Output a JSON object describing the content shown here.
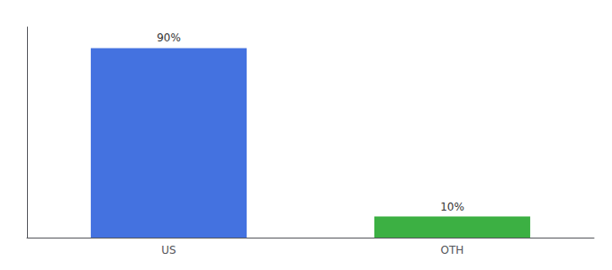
{
  "chart_data": {
    "type": "bar",
    "categories": [
      "US",
      "OTH"
    ],
    "values": [
      90,
      10
    ],
    "value_labels": [
      "90%",
      "10%"
    ],
    "colors": [
      "#4472e0",
      "#3cb043"
    ],
    "ylim": [
      0,
      100
    ],
    "yticks": [],
    "tick_labels": "x",
    "grid": false,
    "data_labels": true
  }
}
